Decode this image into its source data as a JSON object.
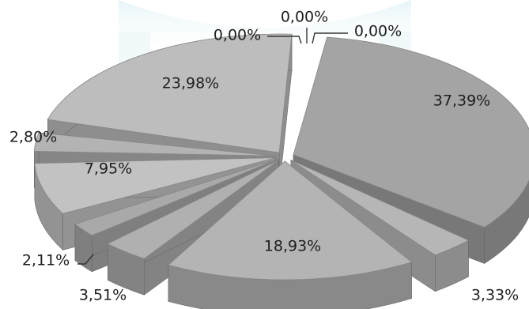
{
  "chart_data": {
    "type": "pie",
    "style": "3d-exploded",
    "title": "",
    "legend": "none",
    "slices": [
      {
        "label": "37,39%",
        "value": 37.39
      },
      {
        "label": "3,33%",
        "value": 3.33
      },
      {
        "label": "18,93%",
        "value": 18.93
      },
      {
        "label": "3,51%",
        "value": 3.51
      },
      {
        "label": "2,11%",
        "value": 2.11
      },
      {
        "label": "7,95%",
        "value": 7.95
      },
      {
        "label": "2,80%",
        "value": 2.8
      },
      {
        "label": "23,98%",
        "value": 23.98
      },
      {
        "label": "0,00%",
        "value": 0.0
      },
      {
        "label": "0,00%",
        "value": 0.0
      },
      {
        "label": "0,00%",
        "value": 0.0
      }
    ]
  }
}
